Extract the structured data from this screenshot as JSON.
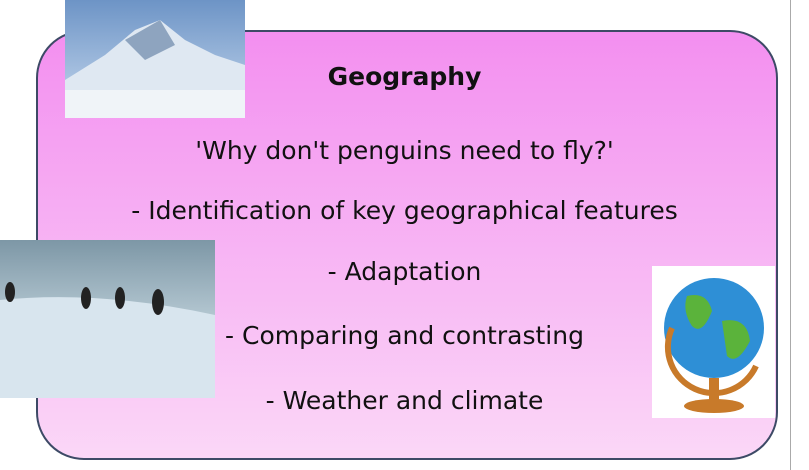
{
  "title": "Geography",
  "question": "'Why don't penguins need to fly?'",
  "points": [
    "- Identification of key geographical features",
    "- Adaptation",
    "- Comparing and contrasting",
    "- Weather and climate"
  ]
}
